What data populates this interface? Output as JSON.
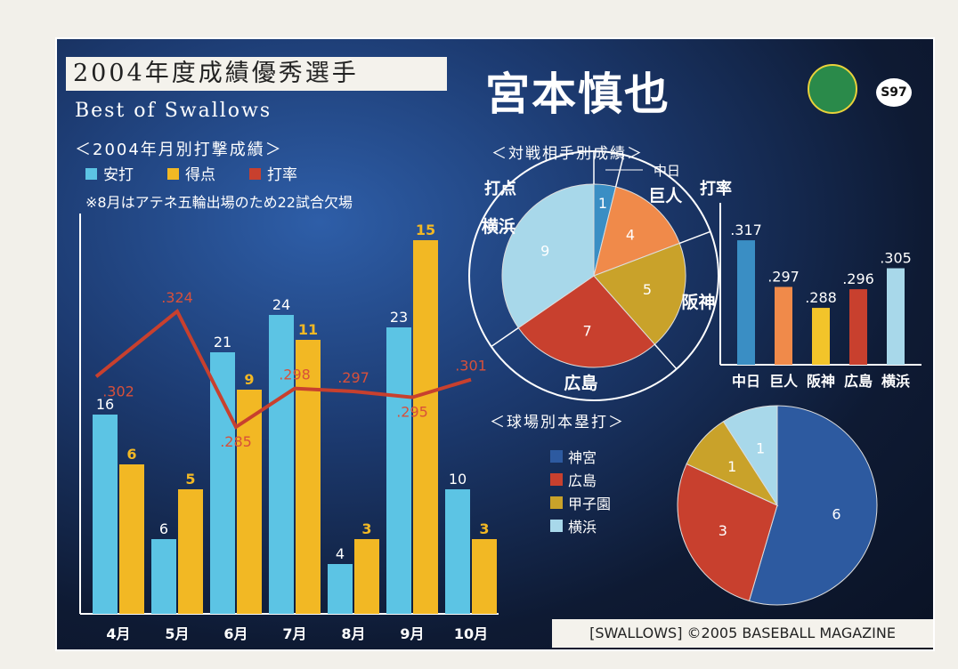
{
  "header": {
    "banner": "2004年度成績優秀選手",
    "subtitle": "Best of Swallows",
    "player_name": "宮本慎也",
    "card_number": "S97"
  },
  "footer": {
    "copyright": "[SWALLOWS] ©2005 BASEBALL MAGAZINE"
  },
  "chart_data": [
    {
      "type": "bar",
      "title": "＜2004年月別打撃成績＞",
      "note": "※8月はアテネ五輪出場のため22試合欠場",
      "categories": [
        "4月",
        "5月",
        "6月",
        "7月",
        "8月",
        "9月",
        "10月"
      ],
      "series": [
        {
          "name": "安打",
          "type": "bar",
          "color": "#5cc4e4",
          "values": [
            16,
            6,
            21,
            24,
            4,
            23,
            10
          ]
        },
        {
          "name": "得点",
          "type": "bar",
          "color": "#f2b824",
          "values": [
            6,
            5,
            9,
            11,
            3,
            15,
            3
          ]
        },
        {
          "name": "打率",
          "type": "line",
          "color": "#c8402e",
          "values": [
            ".302",
            ".324",
            ".285",
            ".298",
            ".297",
            ".295",
            ".301"
          ]
        }
      ]
    },
    {
      "type": "pie",
      "title": "＜対戦相手別成績＞",
      "label": "打点",
      "categories": [
        "中日",
        "巨人",
        "阪神",
        "広島",
        "横浜"
      ],
      "values": [
        1,
        4,
        5,
        7,
        9
      ],
      "colors": [
        "#3a8ec4",
        "#f08a4a",
        "#c9a22a",
        "#c8402e",
        "#a8d8ea"
      ]
    },
    {
      "type": "bar",
      "label": "打率",
      "categories": [
        "中日",
        "巨人",
        "阪神",
        "広島",
        "横浜"
      ],
      "values": [
        ".317",
        ".297",
        ".288",
        ".296",
        ".305"
      ],
      "colors": [
        "#3a8ec4",
        "#f08a4a",
        "#f2c42a",
        "#c8402e",
        "#a8d8ea"
      ]
    },
    {
      "type": "pie",
      "title": "＜球場別本塁打＞",
      "categories": [
        "神宮",
        "広島",
        "甲子園",
        "横浜"
      ],
      "values": [
        6,
        3,
        1,
        1
      ],
      "colors": [
        "#2d5aa0",
        "#c8402e",
        "#c9a22a",
        "#a8d8ea"
      ]
    }
  ]
}
